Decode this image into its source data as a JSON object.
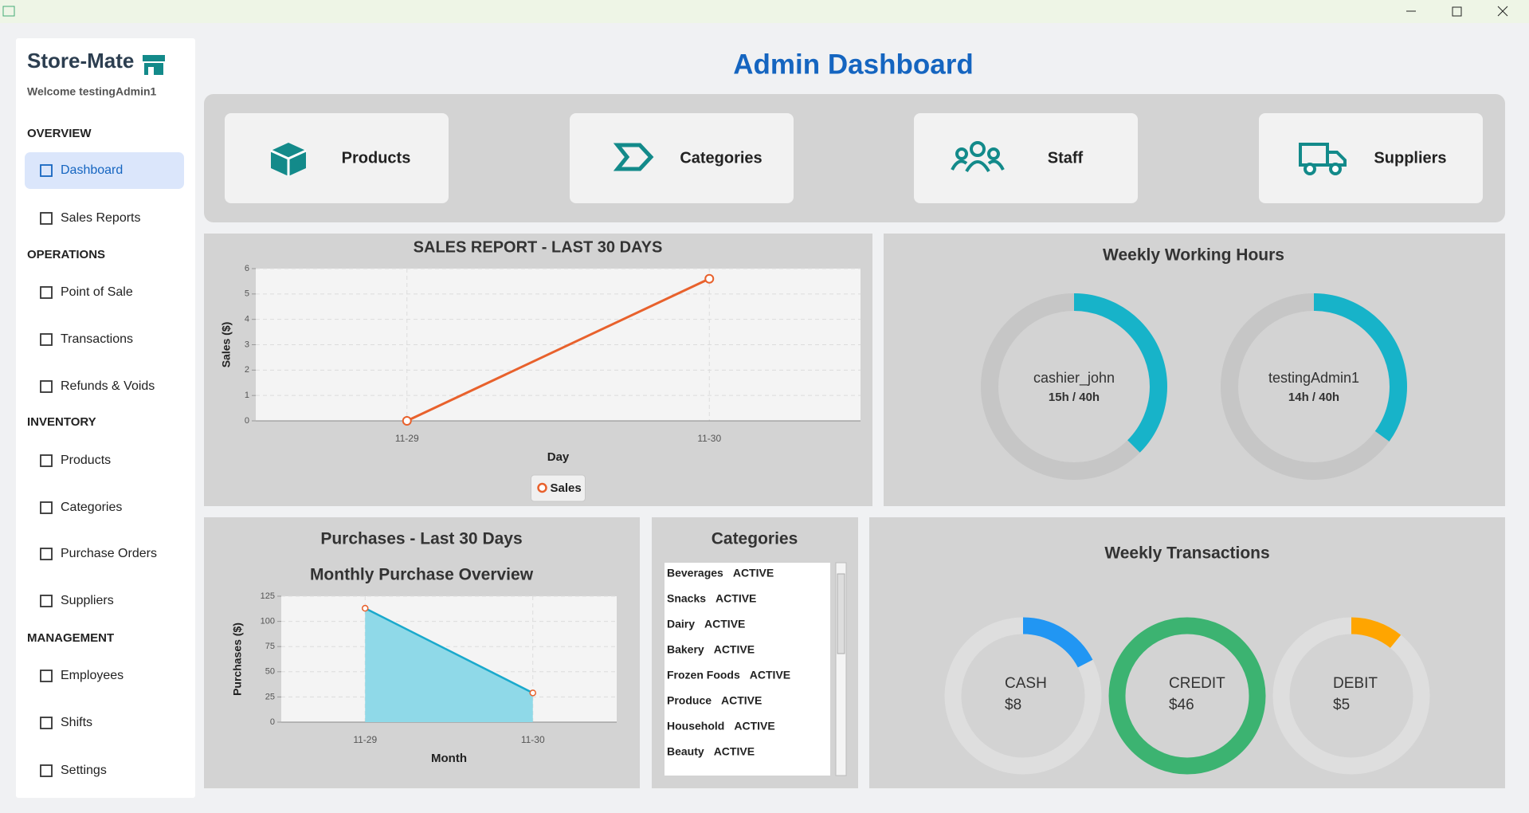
{
  "sidebar": {
    "app_name": "Store-Mate",
    "welcome": "Welcome testingAdmin1",
    "sections": [
      {
        "title": "OVERVIEW",
        "items": [
          "Dashboard",
          "Sales Reports"
        ]
      },
      {
        "title": "OPERATIONS",
        "items": [
          "Point of Sale",
          "Transactions",
          "Refunds & Voids"
        ]
      },
      {
        "title": "INVENTORY",
        "items": [
          "Products",
          "Categories",
          "Purchase Orders",
          "Suppliers"
        ]
      },
      {
        "title": "MANAGEMENT",
        "items": [
          "Employees",
          "Shifts",
          "Settings"
        ]
      }
    ]
  },
  "header": {
    "title": "Admin Dashboard"
  },
  "tiles": [
    "Products",
    "Categories",
    "Staff",
    "Suppliers"
  ],
  "categories_panel": {
    "title": "Categories",
    "rows": [
      [
        "Beverages",
        "ACTIVE"
      ],
      [
        "Snacks",
        "ACTIVE"
      ],
      [
        "Dairy",
        "ACTIVE"
      ],
      [
        "Bakery",
        "ACTIVE"
      ],
      [
        "Frozen Foods",
        "ACTIVE"
      ],
      [
        "Produce",
        "ACTIVE"
      ],
      [
        "Household",
        "ACTIVE"
      ],
      [
        "Beauty",
        "ACTIVE"
      ]
    ]
  },
  "chart_data": [
    {
      "type": "line",
      "title": "SALES REPORT - LAST 30 DAYS",
      "categories": [
        "11-29",
        "11-30"
      ],
      "series": [
        {
          "name": "Sales",
          "color": "#e8612c",
          "values": [
            0,
            5.6
          ]
        }
      ],
      "xlabel": "Day",
      "ylabel": "Sales ($)",
      "ylim": [
        0,
        6
      ],
      "yticks": [
        0,
        1,
        2,
        3,
        4,
        5,
        6
      ],
      "grid": true,
      "legend": "bottom"
    },
    {
      "type": "area",
      "title": "Purchases - Last 30 Days",
      "subtitle": "Monthly Purchase Overview",
      "categories": [
        "11-29",
        "11-30"
      ],
      "values": [
        113,
        29
      ],
      "color": "#1aa9cc",
      "fill": "#8fd9e8",
      "xlabel": "Month",
      "ylabel": "Purchases ($)",
      "ylim": [
        0,
        125
      ],
      "yticks": [
        0,
        25,
        50,
        75,
        100,
        125
      ],
      "grid": true
    },
    {
      "type": "donut",
      "title": "Weekly Working Hours",
      "categories": [
        "cashier_john",
        "testingAdmin1"
      ],
      "values": [
        15,
        14
      ],
      "value_labels": [
        "15h / 40h",
        "14h / 40h"
      ],
      "max": 40,
      "colors": [
        "#17b3c9",
        "#17b3c9"
      ],
      "track_color": "#c6c6c6"
    },
    {
      "type": "donut",
      "title": "Weekly Transactions",
      "categories": [
        "CASH",
        "CREDIT",
        "DEBIT"
      ],
      "values": [
        8,
        46,
        5
      ],
      "value_labels": [
        "$8",
        "$46",
        "$5"
      ],
      "colors": [
        "#2196f3",
        "#3cb371",
        "#ffa500"
      ],
      "track_color": "#dedede"
    }
  ]
}
